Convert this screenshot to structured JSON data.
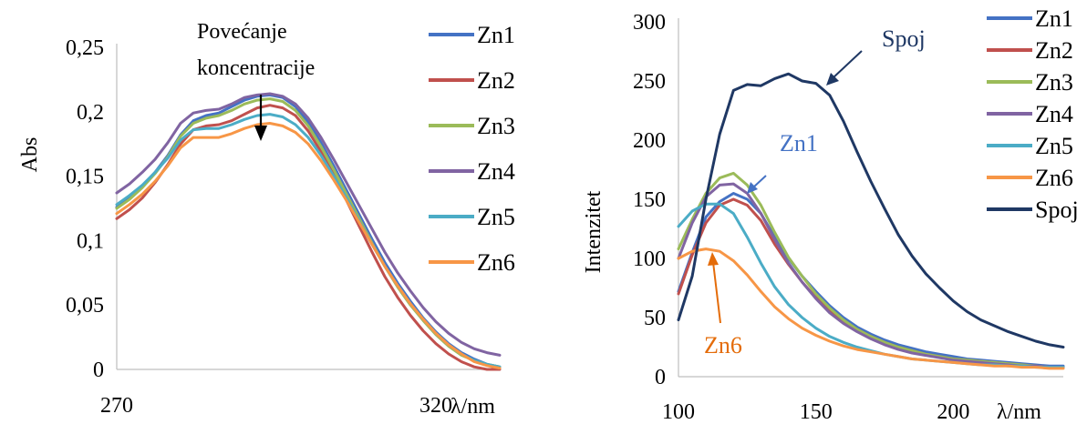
{
  "chart_data": [
    {
      "type": "line",
      "ylabel": "Abs",
      "xlabel": "λ/nm",
      "xlim": [
        270,
        330
      ],
      "ylim": [
        0,
        0.25
      ],
      "x_ticks": [
        "270",
        "320"
      ],
      "y_ticks": [
        "0",
        "0,05",
        "0,1",
        "0,15",
        "0,2",
        "0,25"
      ],
      "annotation": "Povećanje koncentracije",
      "annotation_lines": [
        "Povećanje",
        "koncentracije"
      ],
      "legend_position": "right",
      "grid": false,
      "x": [
        270,
        272,
        274,
        276,
        278,
        280,
        282,
        284,
        286,
        288,
        290,
        292,
        294,
        296,
        298,
        300,
        302,
        304,
        306,
        308,
        310,
        312,
        314,
        316,
        318,
        320,
        322,
        324,
        326,
        328,
        330
      ],
      "series": [
        {
          "name": "Zn1",
          "color": "#4472C4",
          "values": [
            0.126,
            0.133,
            0.142,
            0.153,
            0.166,
            0.182,
            0.193,
            0.197,
            0.199,
            0.204,
            0.209,
            0.212,
            0.213,
            0.211,
            0.204,
            0.192,
            0.176,
            0.158,
            0.139,
            0.12,
            0.101,
            0.083,
            0.067,
            0.053,
            0.04,
            0.029,
            0.02,
            0.013,
            0.008,
            0.004,
            0.002
          ]
        },
        {
          "name": "Zn2",
          "color": "#C0504D",
          "values": [
            0.117,
            0.124,
            0.133,
            0.145,
            0.159,
            0.175,
            0.186,
            0.189,
            0.19,
            0.193,
            0.198,
            0.203,
            0.205,
            0.203,
            0.197,
            0.185,
            0.169,
            0.151,
            0.131,
            0.111,
            0.091,
            0.072,
            0.056,
            0.042,
            0.03,
            0.02,
            0.012,
            0.006,
            0.002,
            0.0,
            0.0
          ]
        },
        {
          "name": "Zn3",
          "color": "#9BBB59",
          "values": [
            0.125,
            0.132,
            0.141,
            0.152,
            0.165,
            0.181,
            0.191,
            0.195,
            0.197,
            0.201,
            0.206,
            0.209,
            0.21,
            0.208,
            0.201,
            0.189,
            0.173,
            0.155,
            0.136,
            0.117,
            0.098,
            0.08,
            0.064,
            0.05,
            0.038,
            0.027,
            0.018,
            0.011,
            0.007,
            0.004,
            0.002
          ]
        },
        {
          "name": "Zn4",
          "color": "#8064A2",
          "values": [
            0.137,
            0.144,
            0.153,
            0.163,
            0.176,
            0.191,
            0.199,
            0.201,
            0.202,
            0.206,
            0.211,
            0.213,
            0.214,
            0.212,
            0.206,
            0.195,
            0.18,
            0.163,
            0.145,
            0.127,
            0.109,
            0.091,
            0.075,
            0.061,
            0.048,
            0.037,
            0.028,
            0.021,
            0.016,
            0.013,
            0.011
          ]
        },
        {
          "name": "Zn5",
          "color": "#4BACC6",
          "values": [
            0.128,
            0.135,
            0.143,
            0.153,
            0.164,
            0.178,
            0.186,
            0.187,
            0.187,
            0.19,
            0.194,
            0.197,
            0.198,
            0.196,
            0.19,
            0.18,
            0.166,
            0.15,
            0.133,
            0.115,
            0.097,
            0.08,
            0.065,
            0.051,
            0.039,
            0.028,
            0.019,
            0.012,
            0.007,
            0.004,
            0.002
          ]
        },
        {
          "name": "Zn6",
          "color": "#F79646",
          "values": [
            0.121,
            0.128,
            0.136,
            0.146,
            0.158,
            0.172,
            0.18,
            0.18,
            0.18,
            0.183,
            0.187,
            0.19,
            0.191,
            0.189,
            0.184,
            0.175,
            0.162,
            0.147,
            0.131,
            0.114,
            0.097,
            0.08,
            0.065,
            0.051,
            0.039,
            0.028,
            0.019,
            0.012,
            0.006,
            0.003,
            0.001
          ]
        }
      ]
    },
    {
      "type": "line",
      "ylabel": "Intenzitet",
      "xlabel": "λ/nm",
      "xlim": [
        100,
        240
      ],
      "ylim": [
        0,
        300
      ],
      "x_ticks": [
        "100",
        "150",
        "200"
      ],
      "y_ticks": [
        "0",
        "50",
        "100",
        "150",
        "200",
        "250",
        "300"
      ],
      "annotations": [
        "Spoj",
        "Zn1",
        "Zn6"
      ],
      "legend_position": "right",
      "grid": false,
      "x": [
        100,
        105,
        110,
        115,
        120,
        125,
        130,
        135,
        140,
        145,
        150,
        155,
        160,
        165,
        170,
        175,
        180,
        185,
        190,
        195,
        200,
        205,
        210,
        215,
        220,
        225,
        230,
        235,
        240
      ],
      "series": [
        {
          "name": "Zn1",
          "color": "#4472C4",
          "values": [
            72,
            105,
            135,
            148,
            155,
            150,
            138,
            118,
            100,
            85,
            72,
            60,
            50,
            42,
            36,
            31,
            27,
            24,
            21,
            19,
            17,
            15,
            14,
            13,
            12,
            11,
            10,
            9,
            9
          ]
        },
        {
          "name": "Zn2",
          "color": "#C0504D",
          "values": [
            70,
            103,
            130,
            145,
            150,
            145,
            132,
            112,
            95,
            80,
            67,
            56,
            47,
            40,
            34,
            29,
            25,
            22,
            19,
            17,
            15,
            14,
            13,
            12,
            11,
            10,
            9,
            8,
            8
          ]
        },
        {
          "name": "Zn3",
          "color": "#9BBB59",
          "values": [
            108,
            133,
            155,
            168,
            172,
            162,
            145,
            122,
            101,
            85,
            70,
            58,
            48,
            40,
            34,
            29,
            25,
            22,
            19,
            17,
            15,
            14,
            13,
            12,
            11,
            10,
            9,
            8,
            8
          ]
        },
        {
          "name": "Zn4",
          "color": "#8064A2",
          "values": [
            100,
            130,
            152,
            162,
            163,
            155,
            138,
            116,
            96,
            80,
            66,
            54,
            45,
            38,
            32,
            27,
            23,
            20,
            18,
            16,
            14,
            13,
            12,
            11,
            10,
            9,
            9,
            8,
            8
          ]
        },
        {
          "name": "Zn5",
          "color": "#4BACC6",
          "values": [
            127,
            140,
            146,
            146,
            138,
            118,
            96,
            76,
            61,
            50,
            41,
            34,
            29,
            25,
            22,
            19,
            17,
            15,
            14,
            13,
            12,
            11,
            10,
            10,
            9,
            9,
            8,
            8,
            8
          ]
        },
        {
          "name": "Zn6",
          "color": "#F79646",
          "values": [
            100,
            106,
            108,
            106,
            98,
            86,
            72,
            59,
            49,
            41,
            35,
            30,
            26,
            23,
            21,
            19,
            17,
            15,
            14,
            13,
            12,
            11,
            10,
            9,
            9,
            8,
            8,
            7,
            7
          ]
        },
        {
          "name": "Spoj",
          "color": "#1F3864",
          "values": [
            48,
            85,
            150,
            205,
            242,
            247,
            246,
            252,
            256,
            250,
            248,
            238,
            216,
            190,
            165,
            142,
            120,
            102,
            87,
            75,
            64,
            55,
            48,
            43,
            38,
            34,
            30,
            27,
            25
          ]
        }
      ]
    }
  ]
}
